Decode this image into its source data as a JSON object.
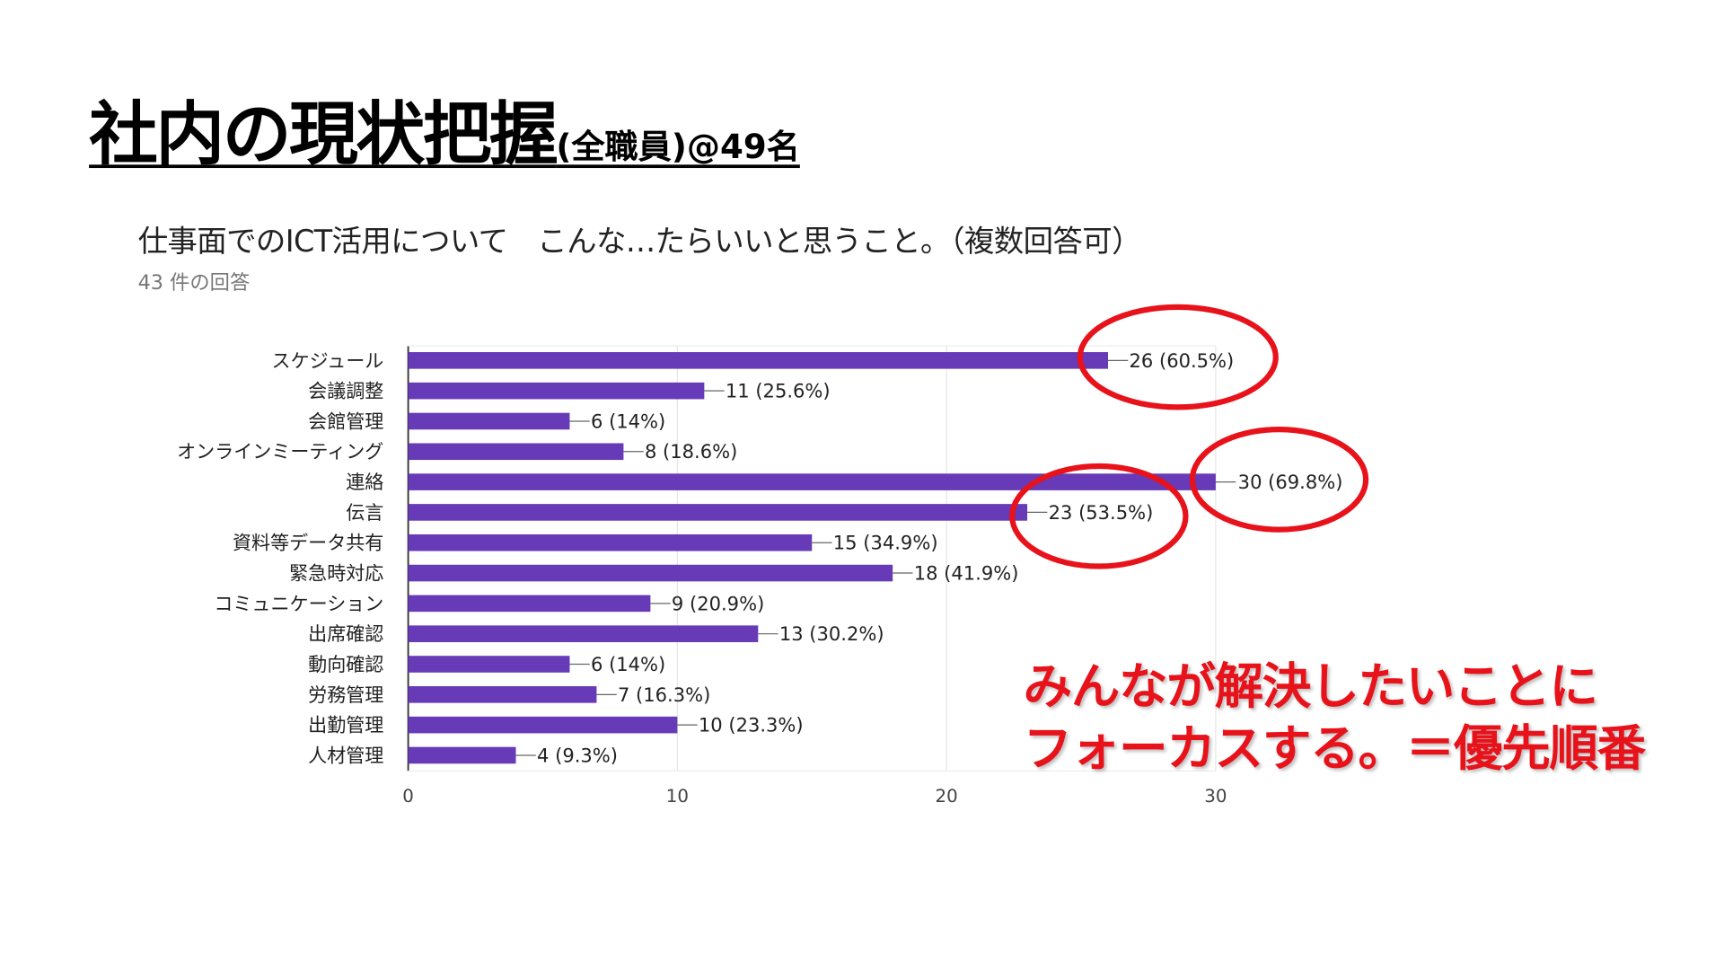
{
  "slide": {
    "title_main": "社内の現状把握",
    "title_sub": "(全職員)@49名",
    "note_lines": [
      "みんなが解決したいことに",
      "フォーカスする。＝優先順番"
    ],
    "note_color": "#e8121b"
  },
  "chart_data": {
    "type": "bar",
    "orientation": "horizontal",
    "title": "仕事面でのICT活用について　こんな…たらいいと思うこと。（複数回答可）",
    "subtitle": "43 件の回答",
    "categories": [
      "スケジュール",
      "会議調整",
      "会館管理",
      "オンラインミーティング",
      "連絡",
      "伝言",
      "資料等データ共有",
      "緊急時対応",
      "コミュニケーション",
      "出席確認",
      "動向確認",
      "労務管理",
      "出勤管理",
      "人材管理"
    ],
    "values": [
      26,
      11,
      6,
      8,
      30,
      23,
      15,
      18,
      9,
      13,
      6,
      7,
      10,
      4
    ],
    "data_labels": [
      "26 (60.5%)",
      "11 (25.6%)",
      "6 (14%)",
      "8 (18.6%)",
      "30 (69.8%)",
      "23 (53.5%)",
      "15 (34.9%)",
      "18 (41.9%)",
      "9 (20.9%)",
      "13 (30.2%)",
      "6 (14%)",
      "7 (16.3%)",
      "10 (23.3%)",
      "4 (9.3%)"
    ],
    "xlim": [
      0,
      30
    ],
    "xticks": [
      "0",
      "10",
      "20",
      "30"
    ],
    "grid": true,
    "bar_color": "#673ab7",
    "highlighted": [
      "スケジュール",
      "連絡",
      "伝言"
    ],
    "highlight_color": "#e8121b"
  }
}
